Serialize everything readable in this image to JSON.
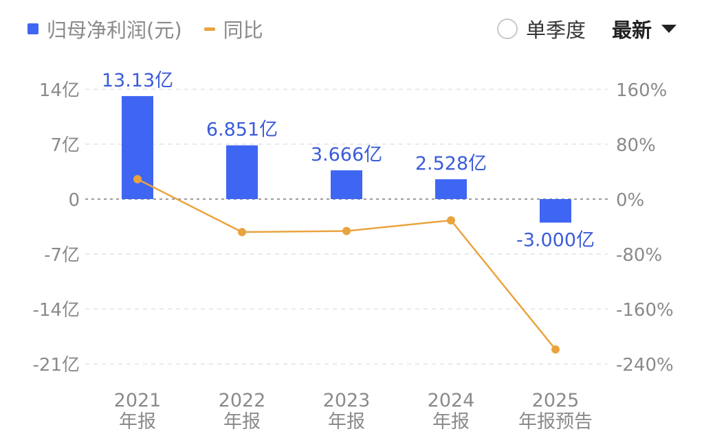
{
  "legend": {
    "bar_label": "归母净利润(元)",
    "line_label": "同比"
  },
  "controls": {
    "season_label": "单季度",
    "latest_label": "最新"
  },
  "colors": {
    "bar": "#3f66f3",
    "line": "#e9a33e",
    "bar_label": "#3a5bd9",
    "axis_text": "#8a8a8a"
  },
  "chart_data": {
    "type": "bar",
    "categories": [
      [
        "2021",
        "年报"
      ],
      [
        "2022",
        "年报"
      ],
      [
        "2023",
        "年报"
      ],
      [
        "2024",
        "年报"
      ],
      [
        "2025",
        "年报预告"
      ]
    ],
    "series": [
      {
        "name": "归母净利润(元)",
        "type": "bar",
        "axis": "left",
        "values": [
          13.13,
          6.851,
          3.666,
          2.528,
          -3.0
        ],
        "labels": [
          "13.13亿",
          "6.851亿",
          "3.666亿",
          "2.528亿",
          "-3.000亿"
        ]
      },
      {
        "name": "同比",
        "type": "line",
        "axis": "right",
        "values": [
          29,
          -48,
          -46.5,
          -31,
          -219
        ]
      }
    ],
    "y_left": {
      "ticks": [
        14,
        7,
        0,
        -7,
        -14,
        -21
      ],
      "tick_labels": [
        "14亿",
        "7亿",
        "0",
        "-7亿",
        "-14亿",
        "-21亿"
      ],
      "range": [
        -21,
        14
      ]
    },
    "y_right": {
      "ticks": [
        160,
        80,
        0,
        -80,
        -160,
        -240
      ],
      "tick_labels": [
        "160%",
        "80%",
        "0%",
        "-80%",
        "-160%",
        "-240%"
      ],
      "range": [
        -240,
        160
      ]
    },
    "grid": true,
    "legend_position": "top-left"
  }
}
